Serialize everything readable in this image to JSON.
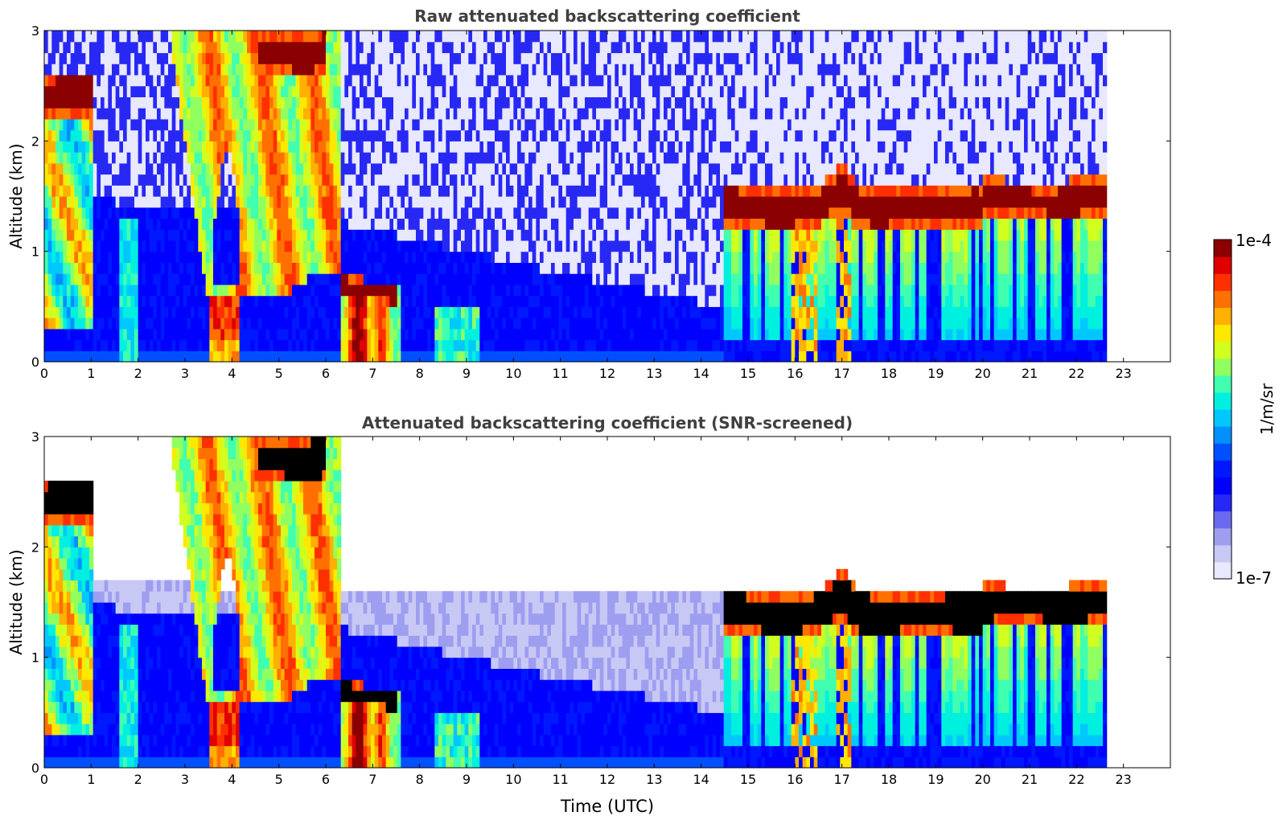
{
  "chart_data": [
    {
      "type": "heatmap",
      "title": "Raw attenuated backscattering coefficient",
      "xlabel": "",
      "ylabel": "Altitude (km)",
      "xlim": [
        0,
        24
      ],
      "ylim": [
        0,
        3
      ],
      "x_ticks": [
        "0",
        "1",
        "2",
        "3",
        "4",
        "5",
        "6",
        "7",
        "8",
        "9",
        "10",
        "11",
        "12",
        "13",
        "14",
        "15",
        "16",
        "17",
        "18",
        "19",
        "20",
        "21",
        "22",
        "23"
      ],
      "y_ticks": [
        "0",
        "1",
        "2",
        "3"
      ],
      "data_end_time": 22.65,
      "cloud_layers": [
        {
          "start": 0.0,
          "end": 1.0,
          "base": 2.2,
          "top": 2.6
        },
        {
          "start": 4.6,
          "end": 6.0,
          "base": 2.6,
          "top": 3.0
        },
        {
          "start": 6.3,
          "end": 7.5,
          "base": 0.55,
          "top": 0.75
        },
        {
          "start": 14.5,
          "end": 20.0,
          "base": 1.2,
          "top": 1.6
        },
        {
          "start": 20.0,
          "end": 22.65,
          "base": 1.3,
          "top": 1.65
        }
      ],
      "aerosol_layer_top": [
        [
          0,
          1.5
        ],
        [
          6,
          1.3
        ],
        [
          10,
          0.9
        ],
        [
          14.5,
          0.5
        ]
      ]
    },
    {
      "type": "heatmap",
      "title": "Attenuated backscattering coefficient (SNR-screened)",
      "xlabel": "Time (UTC)",
      "ylabel": "Altitude (km)",
      "xlim": [
        0,
        24
      ],
      "ylim": [
        0,
        3
      ],
      "x_ticks": [
        "0",
        "1",
        "2",
        "3",
        "4",
        "5",
        "6",
        "7",
        "8",
        "9",
        "10",
        "11",
        "12",
        "13",
        "14",
        "15",
        "16",
        "17",
        "18",
        "19",
        "20",
        "21",
        "22",
        "23"
      ],
      "y_ticks": [
        "0",
        "1",
        "2",
        "3"
      ],
      "data_end_time": 22.65,
      "screened_top": [
        [
          0,
          1.7
        ],
        [
          7.5,
          1.6
        ],
        [
          14.5,
          1.55
        ]
      ]
    }
  ],
  "colorbar": {
    "label": "1/m/sr",
    "max_label": "1e-4",
    "min_label": "1e-7",
    "vmin": 1e-07,
    "vmax": 0.0001,
    "scale": "log",
    "colors": [
      "#e8e8ff",
      "#c8c8f5",
      "#9e9ef0",
      "#6a6af0",
      "#2828f5",
      "#0000ff",
      "#0018ff",
      "#0050ff",
      "#0090ff",
      "#00c8ff",
      "#00f0e0",
      "#40ffb0",
      "#90ff60",
      "#d0ff20",
      "#ffe800",
      "#ffb000",
      "#ff7000",
      "#ff3000",
      "#e00000",
      "#8b0000"
    ]
  }
}
